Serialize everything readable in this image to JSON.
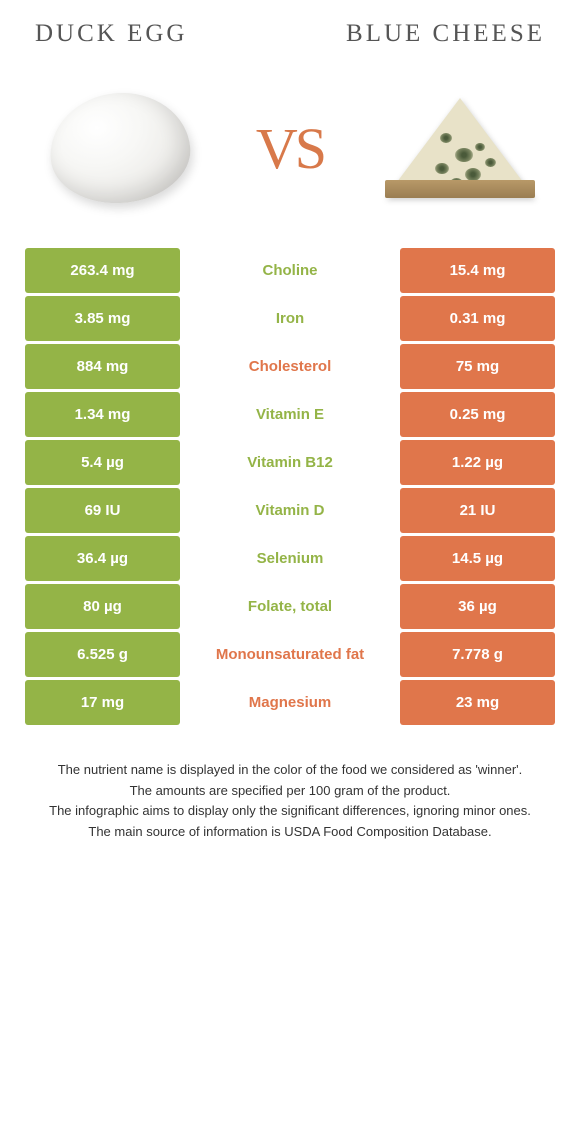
{
  "header": {
    "left_title": "Duck egg",
    "right_title": "Blue cheese",
    "vs_label": "VS"
  },
  "colors": {
    "left": "#94b447",
    "right": "#e0764b",
    "title": "#555555",
    "vs": "#d8794a",
    "background": "#ffffff"
  },
  "typography": {
    "title_fontsize": 25,
    "title_letterspacing": 3,
    "vs_fontsize": 58,
    "cell_fontsize": 15,
    "note_fontsize": 13
  },
  "rows": [
    {
      "left": "263.4 mg",
      "nutrient": "Choline",
      "right": "15.4 mg",
      "winner": "left"
    },
    {
      "left": "3.85 mg",
      "nutrient": "Iron",
      "right": "0.31 mg",
      "winner": "left"
    },
    {
      "left": "884 mg",
      "nutrient": "Cholesterol",
      "right": "75 mg",
      "winner": "right"
    },
    {
      "left": "1.34 mg",
      "nutrient": "Vitamin E",
      "right": "0.25 mg",
      "winner": "left"
    },
    {
      "left": "5.4 µg",
      "nutrient": "Vitamin B12",
      "right": "1.22 µg",
      "winner": "left"
    },
    {
      "left": "69 IU",
      "nutrient": "Vitamin D",
      "right": "21 IU",
      "winner": "left"
    },
    {
      "left": "36.4 µg",
      "nutrient": "Selenium",
      "right": "14.5 µg",
      "winner": "left"
    },
    {
      "left": "80 µg",
      "nutrient": "Folate, total",
      "right": "36 µg",
      "winner": "left"
    },
    {
      "left": "6.525 g",
      "nutrient": "Monounsaturated fat",
      "right": "7.778 g",
      "winner": "right"
    },
    {
      "left": "17 mg",
      "nutrient": "Magnesium",
      "right": "23 mg",
      "winner": "right"
    }
  ],
  "notes": [
    "The nutrient name is displayed in the color of the food we considered as 'winner'.",
    "The amounts are specified per 100 gram of the product.",
    "The infographic aims to display only the significant differences, ignoring minor ones.",
    "The main source of information is USDA Food Composition Database."
  ]
}
